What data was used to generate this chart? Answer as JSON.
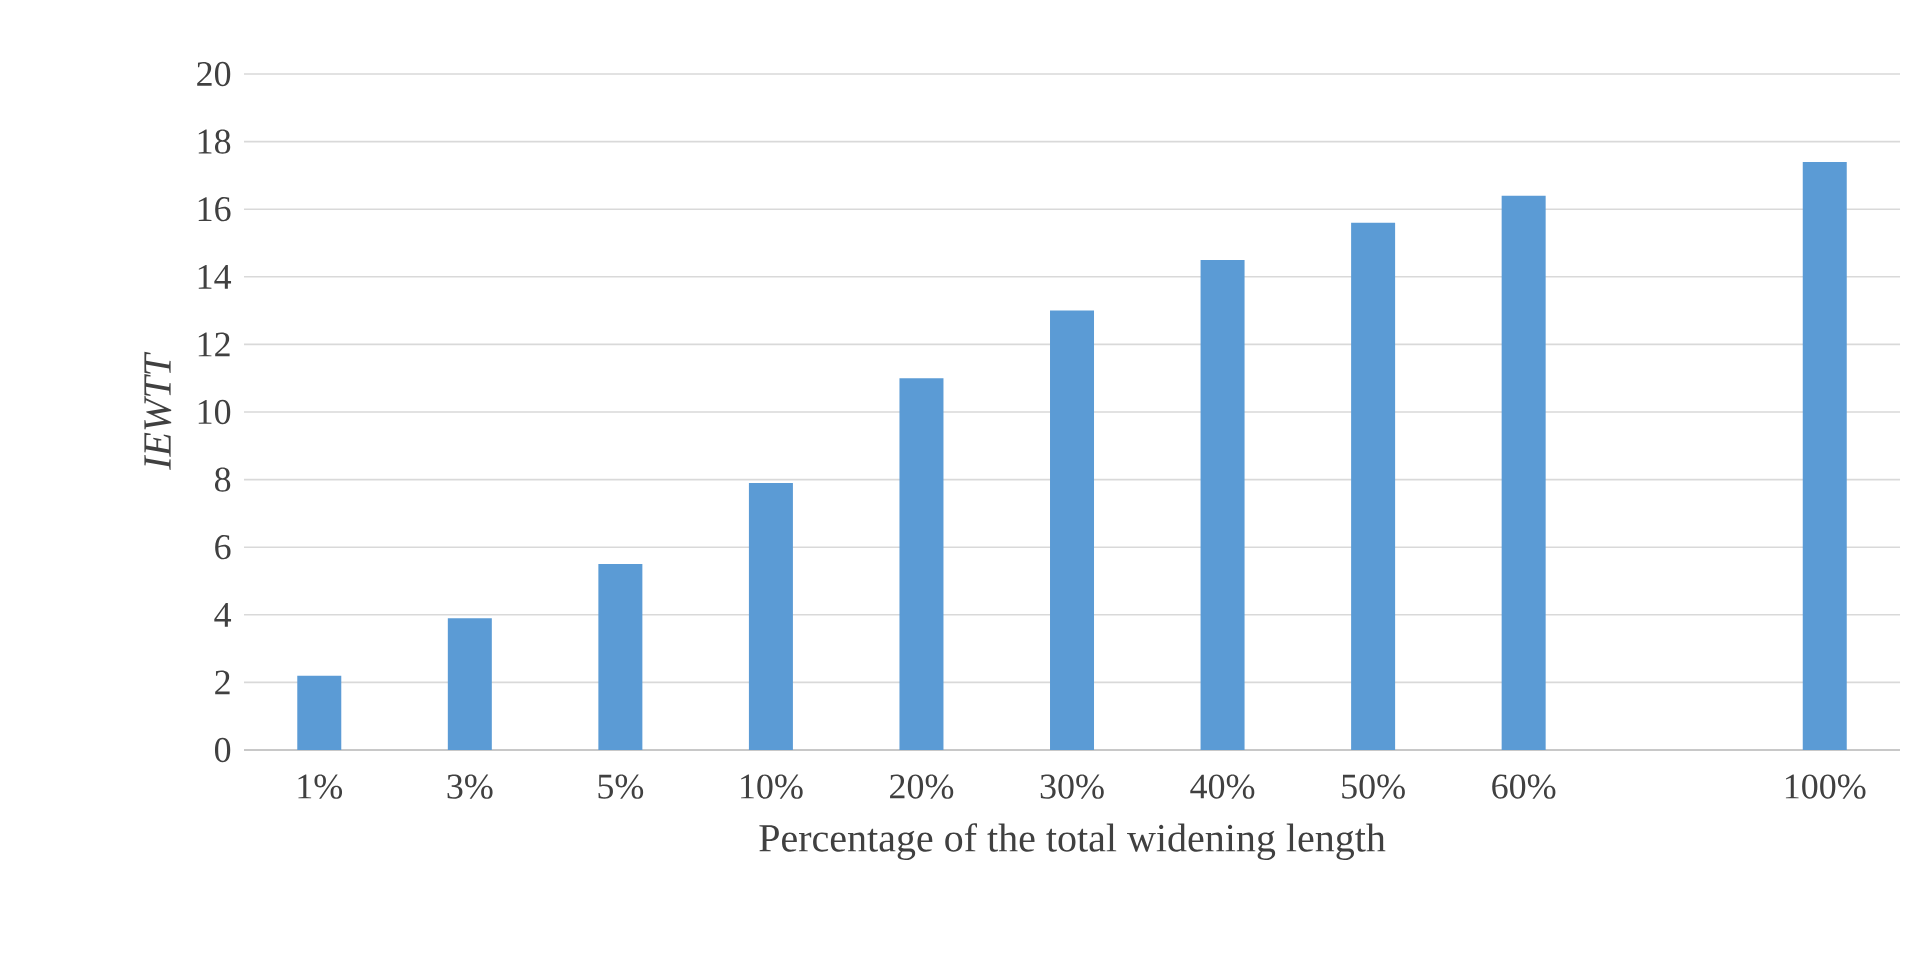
{
  "chart_data": {
    "type": "bar",
    "xlabel": "Percentage of the total widening length",
    "ylabel": "IEWTT",
    "categories": [
      "1%",
      "3%",
      "5%",
      "10%",
      "20%",
      "30%",
      "40%",
      "50%",
      "60%",
      null,
      "100%"
    ],
    "values": [
      2.2,
      3.9,
      5.5,
      7.9,
      11.0,
      13.0,
      14.5,
      15.6,
      16.4,
      null,
      17.4
    ],
    "color": "#5b9bd5",
    "ylim": [
      0,
      20
    ],
    "yticks": [
      0,
      2,
      4,
      6,
      8,
      10,
      12,
      14,
      16,
      18,
      20
    ],
    "grid": "y"
  }
}
